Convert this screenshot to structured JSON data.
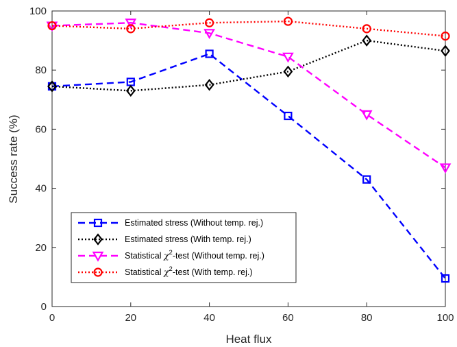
{
  "chart_data": {
    "type": "line",
    "xlabel": "Heat flux",
    "ylabel": "Success rate (%)",
    "xlim": [
      0,
      100
    ],
    "ylim": [
      0,
      100
    ],
    "xticks": [
      0,
      20,
      40,
      60,
      80,
      100
    ],
    "yticks": [
      0,
      20,
      40,
      60,
      80,
      100
    ],
    "grid": false,
    "legend_position": "bottom-left",
    "x": [
      0,
      20,
      40,
      60,
      80,
      100
    ],
    "series": [
      {
        "name": "Estimated stress (Without temp. rej.)",
        "legend": {
          "pre": "Estimated stress (Without temp. rej.)",
          "sym": "",
          "sup": "",
          "post": ""
        },
        "values": [
          74.5,
          76,
          85.5,
          64.5,
          43,
          9.5
        ],
        "color": "#0000ff",
        "dash": "dashed",
        "marker": "square"
      },
      {
        "name": "Estimated stress (With temp. rej.)",
        "legend": {
          "pre": "Estimated stress (With temp. rej.)",
          "sym": "",
          "sup": "",
          "post": ""
        },
        "values": [
          74.5,
          73,
          75,
          79.5,
          90,
          86.5
        ],
        "color": "#000000",
        "dash": "dotted",
        "marker": "diamond"
      },
      {
        "name": "Statistical χ2-test (Without temp. rej.)",
        "legend": {
          "pre": "Statistical ",
          "sym": "χ",
          "sup": "2",
          "post": "-test (Without temp. rej.)"
        },
        "values": [
          95,
          96,
          92.5,
          84.5,
          65,
          47
        ],
        "color": "#ff00ff",
        "dash": "dashed",
        "marker": "triangle-down"
      },
      {
        "name": "Statistical χ2-test (With temp. rej.)",
        "legend": {
          "pre": "Statistical ",
          "sym": "χ",
          "sup": "2",
          "post": "-test (With temp. rej.)"
        },
        "values": [
          95,
          94,
          96,
          96.5,
          94,
          91.5
        ],
        "color": "#ff0000",
        "dash": "dotted",
        "marker": "circle"
      }
    ]
  }
}
